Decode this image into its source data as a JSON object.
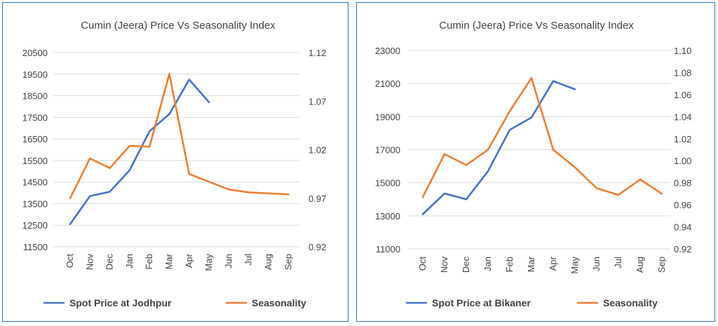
{
  "chart_data": [
    {
      "type": "line",
      "title": "Cumin (Jeera) Price Vs Seasonality Index",
      "categories": [
        "Oct",
        "Nov",
        "Dec",
        "Jan",
        "Feb",
        "Mar",
        "Apr",
        "May",
        "Jun",
        "Jul",
        "Aug",
        "Sep"
      ],
      "y_left": {
        "min": 11500,
        "max": 20500,
        "step": 1000,
        "ticks": [
          "11500",
          "12500",
          "13500",
          "14500",
          "15500",
          "16500",
          "17500",
          "18500",
          "19500",
          "20500"
        ]
      },
      "y_right": {
        "min": 0.92,
        "max": 1.12,
        "step": 0.05,
        "ticks": [
          "0.92",
          "0.97",
          "1.02",
          "1.07",
          "1.12"
        ]
      },
      "grid": true,
      "legend_position": "bottom",
      "series": [
        {
          "name": "Spot Price at Jodhpur",
          "axis": "left",
          "color": "#4472c4",
          "values": [
            12550,
            13850,
            14050,
            15050,
            16850,
            17650,
            19250,
            18200,
            null,
            null,
            null,
            null
          ]
        },
        {
          "name": "Seasonality",
          "axis": "right",
          "color": "#ed7d31",
          "values": [
            0.97,
            1.011,
            1.001,
            1.024,
            1.023,
            1.098,
            0.995,
            0.987,
            0.979,
            0.976,
            0.975,
            0.974
          ]
        }
      ]
    },
    {
      "type": "line",
      "title": "Cumin (Jeera) Price Vs Seasonality Index",
      "categories": [
        "Oct",
        "Nov",
        "Dec",
        "Jan",
        "Feb",
        "Mar",
        "Apr",
        "May",
        "Jun",
        "Jul",
        "Aug",
        "Sep"
      ],
      "y_left": {
        "min": 11000,
        "max": 23000,
        "step": 2000,
        "ticks": [
          "11000",
          "13000",
          "15000",
          "17000",
          "19000",
          "21000",
          "23000"
        ]
      },
      "y_right": {
        "min": 0.92,
        "max": 1.1,
        "step": 0.02,
        "ticks": [
          "0.92",
          "0.94",
          "0.96",
          "0.98",
          "1.00",
          "1.02",
          "1.04",
          "1.06",
          "1.08",
          "1.10"
        ]
      },
      "grid": true,
      "legend_position": "bottom",
      "series": [
        {
          "name": "Spot Price at Bikaner",
          "axis": "left",
          "color": "#4472c4",
          "values": [
            13100,
            14350,
            14000,
            15700,
            18200,
            18950,
            21150,
            20650,
            null,
            null,
            null,
            null
          ]
        },
        {
          "name": "Seasonality",
          "axis": "right",
          "color": "#ed7d31",
          "values": [
            0.967,
            1.006,
            0.996,
            1.01,
            1.045,
            1.075,
            1.01,
            0.994,
            0.975,
            0.969,
            0.983,
            0.97
          ]
        }
      ]
    }
  ]
}
